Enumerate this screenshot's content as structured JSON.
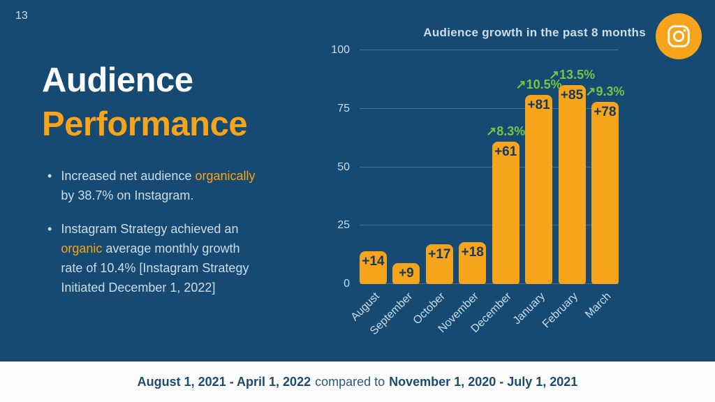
{
  "page": {
    "number": "13"
  },
  "title": {
    "line1": "Audience",
    "line2": "Performance"
  },
  "bullets": [
    {
      "lines": [
        [
          {
            "text": "Increased net audience ",
            "highlight": false
          },
          {
            "text": "organically",
            "highlight": true
          }
        ],
        [
          {
            "text": "by 38.7% on Instagram.",
            "highlight": false
          }
        ]
      ]
    },
    {
      "lines": [
        [
          {
            "text": "Instagram Strategy achieved an",
            "highlight": false
          }
        ],
        [
          {
            "text": "organic",
            "highlight": true
          },
          {
            "text": " average monthly growth",
            "highlight": false
          }
        ],
        [
          {
            "text": "rate of 10.4% [Instagram Strategy",
            "highlight": false
          }
        ],
        [
          {
            "text": "Initiated December 1, 2022]",
            "highlight": false
          }
        ]
      ]
    }
  ],
  "footer": {
    "range1": "August 1, 2021 - April 1, 2022",
    "connector": "compared to",
    "range2": "November 1, 2020 - July 1, 2021"
  },
  "icons": {
    "badge": "instagram-camera-icon"
  },
  "colors": {
    "bg": "#164A72",
    "orange": "#F7A41D",
    "green": "#7CC242",
    "light": "#CBDDE9",
    "navy": "#16395B",
    "footerBg": "#FDFDFD",
    "footerText": "#1B4B74",
    "white": "#FAFBFC"
  },
  "chart_data": {
    "type": "bar",
    "title": "Audience growth in the past 8 months",
    "categories": [
      "August",
      "September",
      "October",
      "November",
      "December",
      "January",
      "February",
      "March"
    ],
    "values": [
      14,
      9,
      17,
      18,
      61,
      81,
      85,
      78
    ],
    "bar_labels": [
      "+14",
      "+9",
      "+17",
      "+18",
      "+61",
      "+81",
      "+85",
      "+78"
    ],
    "growth_labels": [
      "",
      "",
      "",
      "",
      "↗8.3%",
      "↗10.5%",
      "↗13.5%",
      "↗9.3%"
    ],
    "y_ticks": [
      0,
      25,
      50,
      75,
      100
    ],
    "ylim": [
      0,
      100
    ],
    "xlabel": "",
    "ylabel": "",
    "grid": true,
    "legend": "none",
    "bar_color": "#F7A41D",
    "bar_label_color": "#16395B",
    "growth_color": "#7CC242"
  }
}
